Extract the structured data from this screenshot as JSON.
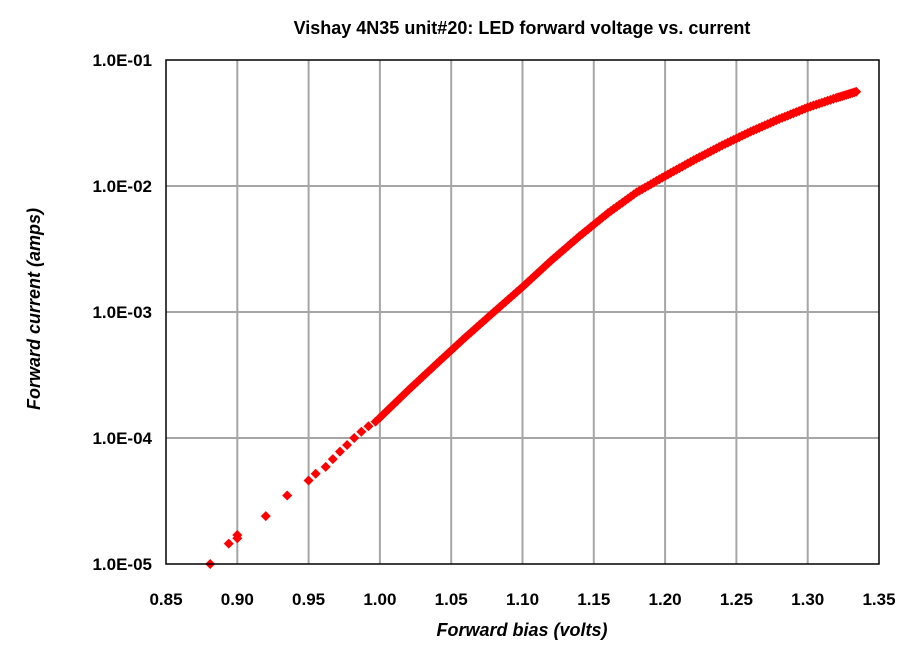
{
  "chart_data": {
    "type": "scatter",
    "title": "Vishay 4N35 unit#20:  LED forward voltage vs. current",
    "xlabel": "Forward  bias  (volts)",
    "ylabel": "Forward  current  (amps)",
    "xlim": [
      0.85,
      1.35
    ],
    "ylim": [
      1e-05,
      0.1
    ],
    "y_scale": "log",
    "grid": true,
    "legend": "none",
    "marker_color": "#ff0000",
    "marker": "diamond",
    "x_ticks": [
      "0.85",
      "0.90",
      "0.95",
      "1.00",
      "1.05",
      "1.10",
      "1.15",
      "1.20",
      "1.25",
      "1.30",
      "1.35"
    ],
    "x_tick_values": [
      0.85,
      0.9,
      0.95,
      1.0,
      1.05,
      1.1,
      1.15,
      1.2,
      1.25,
      1.3,
      1.35
    ],
    "y_ticks": [
      "1.0E-05",
      "1.0E-04",
      "1.0E-03",
      "1.0E-02",
      "1.0E-01"
    ],
    "y_tick_values": [
      1e-05,
      0.0001,
      0.001,
      0.01,
      0.1
    ],
    "curve_x": [
      0.881,
      0.894,
      0.9,
      0.9,
      0.92,
      0.935,
      0.95,
      0.955,
      0.962,
      0.967,
      0.972,
      0.977,
      0.982,
      0.987,
      0.992,
      0.997,
      1.0,
      1.02,
      1.04,
      1.06,
      1.08,
      1.1,
      1.12,
      1.14,
      1.16,
      1.18,
      1.2,
      1.22,
      1.24,
      1.26,
      1.28,
      1.3,
      1.32,
      1.334
    ],
    "curve_y": [
      1e-05,
      1.45e-05,
      1.6e-05,
      1.7e-05,
      2.4e-05,
      3.5e-05,
      4.6e-05,
      5.2e-05,
      5.9e-05,
      6.8e-05,
      7.8e-05,
      8.8e-05,
      0.0001,
      0.000112,
      0.000124,
      0.000135,
      0.000145,
      0.00024,
      0.00039,
      0.00063,
      0.001,
      0.00158,
      0.00255,
      0.004,
      0.0061,
      0.0089,
      0.012,
      0.016,
      0.021,
      0.027,
      0.034,
      0.042,
      0.05,
      0.056
    ]
  }
}
